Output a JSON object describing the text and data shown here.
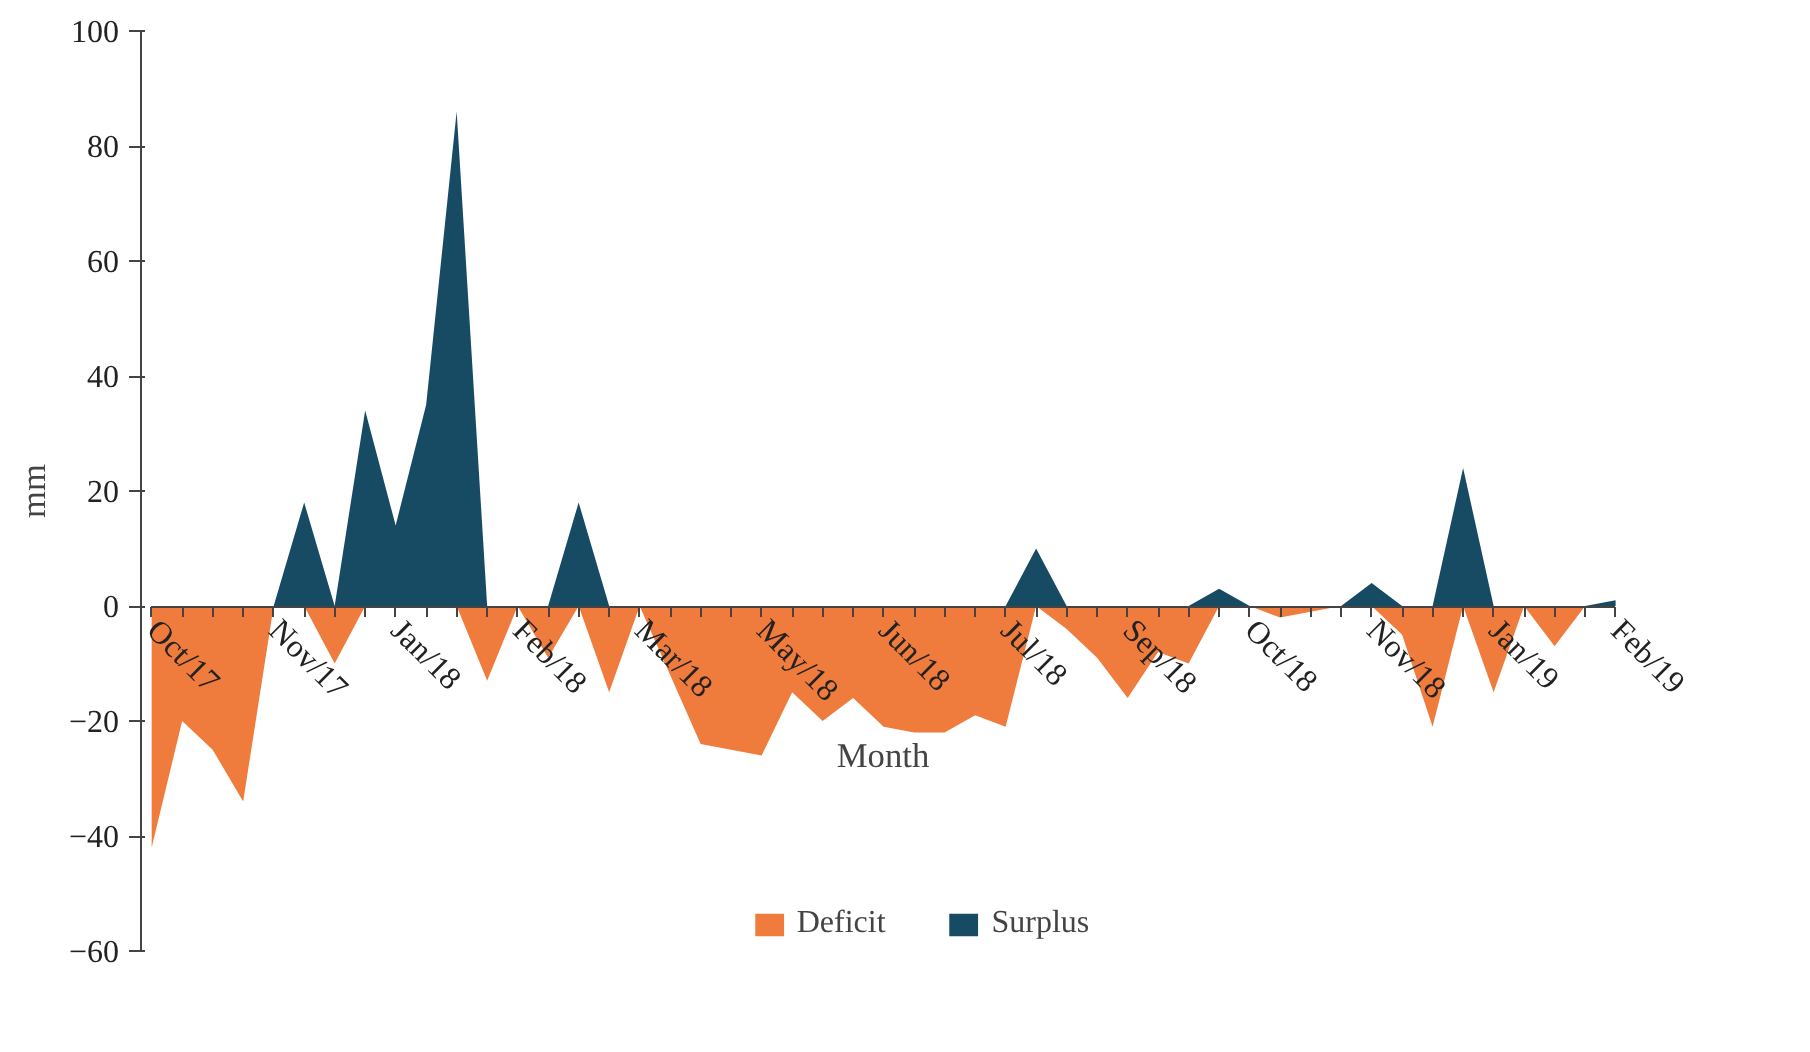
{
  "chart_data": {
    "type": "area",
    "xlabel": "Month",
    "ylabel": "mm",
    "categories": [
      "Oct/17",
      null,
      null,
      null,
      "Nov/17",
      null,
      null,
      null,
      "Jan/18",
      null,
      null,
      null,
      "Feb/18",
      null,
      null,
      null,
      "Mar/18",
      null,
      null,
      null,
      "May/18",
      null,
      null,
      null,
      "Jun/18",
      null,
      null,
      null,
      "Jul/18",
      null,
      null,
      null,
      "Sep/18",
      null,
      null,
      null,
      "Oct/18",
      null,
      null,
      null,
      "Nov/18",
      null,
      null,
      null,
      "Jan/19",
      null,
      null,
      null,
      "Feb/19"
    ],
    "series": [
      {
        "name": "Deficit",
        "color": "#ef7b3d",
        "values": [
          -42,
          -20,
          -25,
          -34,
          0,
          0,
          -10,
          0,
          0,
          0,
          0,
          -13,
          0,
          -9,
          0,
          -15,
          0,
          -12,
          -24,
          -25,
          -26,
          -15,
          -20,
          -16,
          -21,
          -22,
          -22,
          -19,
          -21,
          0,
          -4,
          -9,
          -16,
          -8,
          -10,
          0,
          0,
          -2,
          -1,
          0,
          0,
          -5,
          -21,
          0,
          -15,
          0,
          -7,
          0,
          0
        ]
      },
      {
        "name": "Surplus",
        "color": "#174a63",
        "values": [
          0,
          0,
          0,
          0,
          0,
          18,
          0,
          34,
          14,
          35,
          86,
          0,
          0,
          0,
          18,
          0,
          0,
          0,
          0,
          0,
          0,
          0,
          0,
          0,
          0,
          0,
          0,
          0,
          0,
          10,
          0,
          0,
          0,
          0,
          0,
          3,
          0,
          0,
          0,
          0,
          4,
          0,
          0,
          24,
          0,
          0,
          0,
          0,
          1
        ]
      }
    ],
    "ylim": [
      -60,
      100
    ],
    "yticks": [
      -60,
      -40,
      -20,
      0,
      20,
      40,
      60,
      80,
      100
    ],
    "grid": false,
    "legend": "bottom"
  }
}
